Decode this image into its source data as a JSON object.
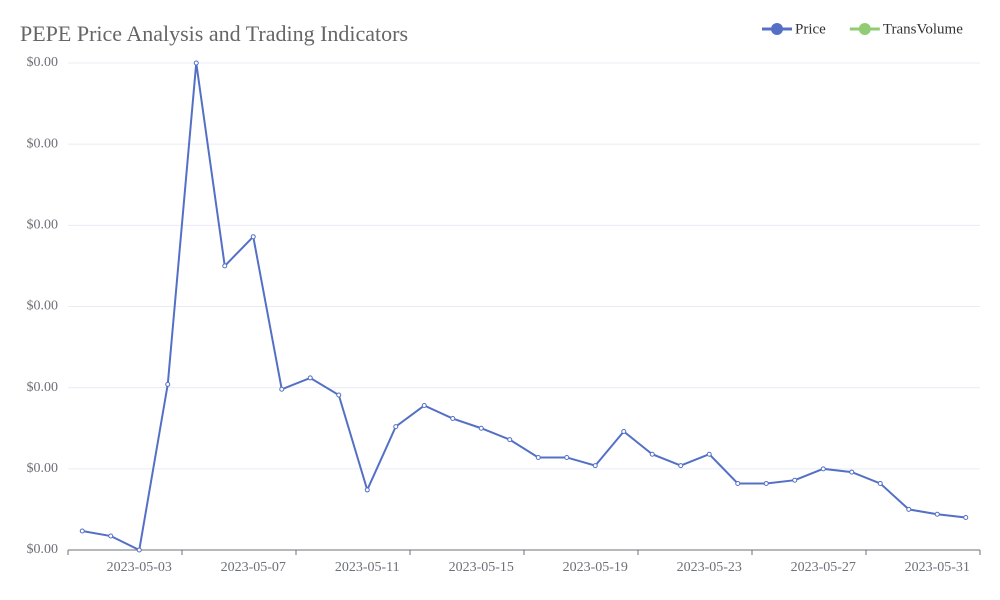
{
  "chart_data": {
    "type": "line",
    "title": "PEPE Price Analysis and Trading Indicators",
    "x": [
      "2023-05-01",
      "2023-05-02",
      "2023-05-03",
      "2023-05-04",
      "2023-05-05",
      "2023-05-06",
      "2023-05-07",
      "2023-05-08",
      "2023-05-09",
      "2023-05-10",
      "2023-05-11",
      "2023-05-12",
      "2023-05-13",
      "2023-05-14",
      "2023-05-15",
      "2023-05-16",
      "2023-05-17",
      "2023-05-18",
      "2023-05-19",
      "2023-05-20",
      "2023-05-21",
      "2023-05-22",
      "2023-05-23",
      "2023-05-24",
      "2023-05-25",
      "2023-05-26",
      "2023-05-27",
      "2023-05-28",
      "2023-05-29",
      "2023-05-30",
      "2023-05-31",
      "2023-06-01"
    ],
    "xticks": [
      "2023-05-03",
      "2023-05-07",
      "2023-05-11",
      "2023-05-15",
      "2023-05-19",
      "2023-05-23",
      "2023-05-27",
      "2023-05-31"
    ],
    "series": [
      {
        "name": "Price",
        "color": "#5470c6",
        "values": [
          1.17e-07,
          8.6e-08,
          0,
          1.02e-06,
          3e-06,
          1.75e-06,
          1.93e-06,
          9.9e-07,
          1.06e-06,
          9.55e-07,
          3.7e-07,
          7.6e-07,
          8.9e-07,
          8.1e-07,
          7.5e-07,
          6.8e-07,
          5.7e-07,
          5.7e-07,
          5.2e-07,
          7.3e-07,
          5.9e-07,
          5.2e-07,
          5.9e-07,
          4.1e-07,
          4.1e-07,
          4.3e-07,
          5e-07,
          4.8e-07,
          4.1e-07,
          2.5e-07,
          2.2e-07,
          2e-07
        ]
      },
      {
        "name": "TransVolume",
        "color": "#91cc75",
        "values": [
          null,
          null,
          null,
          null,
          null,
          null,
          null,
          null,
          null,
          null,
          null,
          null,
          null,
          null,
          null,
          null,
          null,
          null,
          null,
          null,
          null,
          null,
          null,
          null,
          null,
          null,
          null,
          null,
          null,
          null,
          null,
          null
        ]
      }
    ],
    "ylim": [
      0,
      3e-06
    ],
    "yticks": [
      {
        "value": 0,
        "label": "$0.00"
      },
      {
        "value": 5e-07,
        "label": "$0.00"
      },
      {
        "value": 1e-06,
        "label": "$0.00"
      },
      {
        "value": 1.5e-06,
        "label": "$0.00"
      },
      {
        "value": 2e-06,
        "label": "$0.00"
      },
      {
        "value": 2.5e-06,
        "label": "$0.00"
      },
      {
        "value": 3e-06,
        "label": "$0.00"
      }
    ],
    "grid": true,
    "legend": "top-right"
  }
}
